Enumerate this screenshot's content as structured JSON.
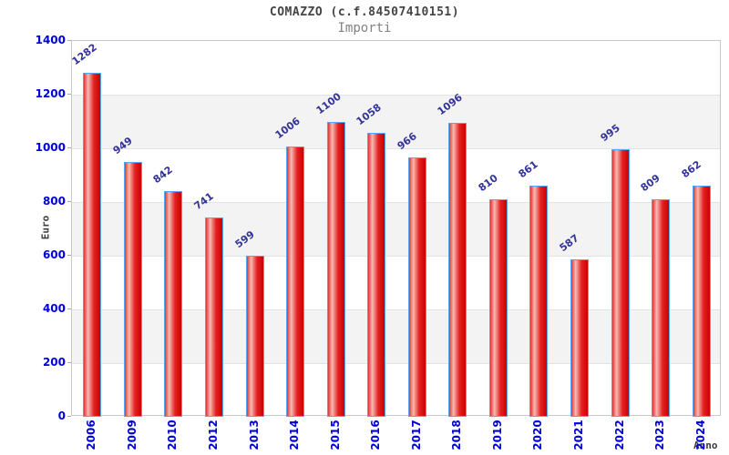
{
  "chart_data": {
    "type": "bar",
    "title": "COMAZZO (c.f.84507410151)",
    "subtitle": "Importi",
    "xlabel": "Anno",
    "ylabel": "Euro",
    "categories": [
      "2006",
      "2009",
      "2010",
      "2012",
      "2013",
      "2014",
      "2015",
      "2016",
      "2017",
      "2018",
      "2019",
      "2020",
      "2021",
      "2022",
      "2023",
      "2024"
    ],
    "values": [
      1282,
      949,
      842,
      741,
      599,
      1006,
      1100,
      1058,
      966,
      1096,
      810,
      861,
      587,
      995,
      809,
      862
    ],
    "ylim": [
      0,
      1400
    ],
    "ytick_step": 200,
    "grid": true,
    "legend_position": "none",
    "colors": {
      "bar_fill_dark": "#c60404",
      "bar_fill_main": "#e41f1f",
      "bar_fill_highlight": "#f6bab2",
      "bar_border": "#58a6f2",
      "tick_label": "#0000d8",
      "value_label": "#333399",
      "band": "#f3f3f3",
      "gridline": "#e3e3e3",
      "plot_border": "#c9c9c9",
      "axis_title_text": "#3d3d3d",
      "title_text": "#454545",
      "subtitle_text": "#828282"
    }
  }
}
